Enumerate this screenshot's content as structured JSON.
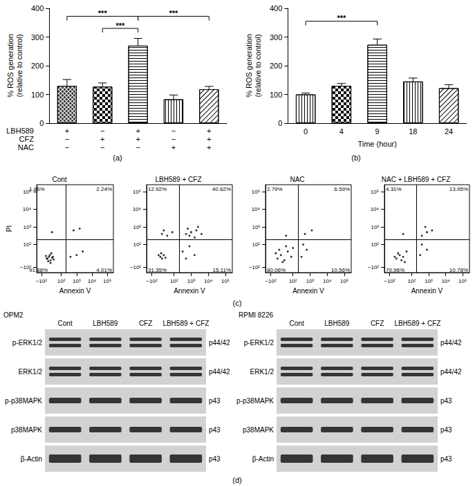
{
  "chart_data": [
    {
      "type": "bar",
      "ylabel": "% ROS generation\n(relative to control)",
      "color": "#000000",
      "ylim": [
        0,
        400
      ],
      "yticks": [
        0,
        100,
        200,
        300,
        400
      ],
      "treatment_rows": [
        {
          "name": "LBH589",
          "signs": [
            "+",
            "−",
            "+",
            "−",
            "+"
          ]
        },
        {
          "name": "CFZ",
          "signs": [
            "−",
            "+",
            "+",
            "−",
            "+"
          ]
        },
        {
          "name": "NAC",
          "signs": [
            "−",
            "−",
            "−",
            "+",
            "+"
          ]
        }
      ],
      "values": [
        130,
        127,
        270,
        83,
        118
      ],
      "errors": [
        22,
        13,
        25,
        15,
        10
      ],
      "significance": [
        {
          "from": 0,
          "to": 2,
          "y": 372,
          "label": "***"
        },
        {
          "from": 1,
          "to": 2,
          "y": 330,
          "label": "***"
        },
        {
          "from": 2,
          "to": 4,
          "y": 372,
          "label": "***"
        }
      ]
    },
    {
      "type": "bar",
      "ylabel": "% ROS generation\n(relative to control)",
      "xlabel": "Time (hour)",
      "color": "#000000",
      "categories": [
        "0",
        "4",
        "9",
        "18",
        "24"
      ],
      "ylim": [
        0,
        400
      ],
      "yticks": [
        0,
        100,
        200,
        300,
        400
      ],
      "values": [
        100,
        130,
        273,
        145,
        122
      ],
      "errors": [
        5,
        8,
        20,
        12,
        12
      ],
      "significance": [
        {
          "from": 0,
          "to": 2,
          "y": 355,
          "label": "***"
        }
      ]
    },
    {
      "type": "scatter",
      "title": "Cont",
      "xlabel": "Annexin V",
      "ylabel": "PI",
      "color": "#000000",
      "xlim": [
        0,
        5
      ],
      "ylim": [
        0,
        5
      ],
      "xticks": [
        {
          "value": 0.3,
          "label": "−10²"
        },
        {
          "value": 1.6,
          "label": "10²"
        },
        {
          "value": 2.6,
          "label": "10³"
        },
        {
          "value": 3.6,
          "label": "10⁴"
        },
        {
          "value": 4.6,
          "label": "10⁵"
        }
      ],
      "yticks": [
        {
          "value": 0.3,
          "label": "−10²"
        },
        {
          "value": 1.6,
          "label": "10²"
        },
        {
          "value": 2.6,
          "label": "10³"
        },
        {
          "value": 3.6,
          "label": "10⁴"
        },
        {
          "value": 4.6,
          "label": "10⁵"
        }
      ],
      "gate": [
        1.9,
        1.9
      ],
      "quadrant_labels": {
        "upper_left": "1.86%",
        "upper_right": "2.24%",
        "lower_left": "91.88%",
        "lower_right": "4.01%"
      },
      "x": [
        0.7,
        0.8,
        0.9,
        1.0,
        0.6,
        0.85,
        1.1,
        0.75,
        0.95,
        1.05,
        0.65,
        2.2,
        2.6,
        3.0,
        2.4,
        1.0,
        2.8,
        0.9
      ],
      "y": [
        0.8,
        0.9,
        0.7,
        0.85,
        0.95,
        1.0,
        0.75,
        0.65,
        1.1,
        0.9,
        0.8,
        0.9,
        1.0,
        1.2,
        2.4,
        2.3,
        2.5,
        0.55
      ]
    },
    {
      "type": "scatter",
      "title": "LBH589 + CFZ",
      "xlabel": "Annexin V",
      "color": "#000000",
      "xlim": [
        0,
        5
      ],
      "ylim": [
        0,
        5
      ],
      "xticks": [
        {
          "value": 0.3,
          "label": "−10²"
        },
        {
          "value": 1.6,
          "label": "10²"
        },
        {
          "value": 2.6,
          "label": "10³"
        },
        {
          "value": 3.6,
          "label": "10⁴"
        },
        {
          "value": 4.6,
          "label": "10⁵"
        }
      ],
      "yticks": [
        {
          "value": 0.3,
          "label": "−10²"
        },
        {
          "value": 1.6,
          "label": "10²"
        },
        {
          "value": 2.6,
          "label": "10³"
        },
        {
          "value": 3.6,
          "label": "10⁴"
        },
        {
          "value": 4.6,
          "label": "10⁵"
        }
      ],
      "gate": [
        1.9,
        1.9
      ],
      "quadrant_labels": {
        "upper_left": "12.92%",
        "upper_right": "40.62%",
        "lower_left": "31.35%",
        "lower_right": "15.11%"
      },
      "x": [
        0.8,
        0.9,
        1.0,
        0.7,
        1.1,
        0.85,
        0.9,
        1.2,
        1.5,
        1.0,
        2.3,
        2.6,
        2.9,
        2.5,
        3.2,
        2.8,
        2.4,
        3.0,
        2.1,
        2.5,
        2.8,
        2.3
      ],
      "y": [
        0.9,
        0.8,
        1.0,
        1.0,
        0.85,
        1.1,
        2.2,
        2.1,
        2.3,
        2.4,
        2.2,
        2.3,
        2.4,
        2.1,
        2.2,
        2.0,
        2.5,
        2.6,
        1.2,
        1.5,
        1.0,
        0.8
      ]
    },
    {
      "type": "scatter",
      "title": "NAC",
      "xlabel": "Annexin V",
      "color": "#000000",
      "xlim": [
        0,
        5
      ],
      "ylim": [
        0,
        5
      ],
      "xticks": [
        {
          "value": 0.3,
          "label": "−10²"
        },
        {
          "value": 1.6,
          "label": "10²"
        },
        {
          "value": 2.6,
          "label": "10³"
        },
        {
          "value": 3.6,
          "label": "10⁴"
        },
        {
          "value": 4.6,
          "label": "10⁵"
        }
      ],
      "yticks": [
        {
          "value": 0.3,
          "label": "−10²"
        },
        {
          "value": 1.6,
          "label": "10²"
        },
        {
          "value": 2.6,
          "label": "10³"
        },
        {
          "value": 3.6,
          "label": "10⁴"
        },
        {
          "value": 4.6,
          "label": "10⁵"
        }
      ],
      "gate": [
        1.9,
        1.9
      ],
      "quadrant_labels": {
        "upper_left": "2.79%",
        "upper_right": "6.59%",
        "lower_left": "80.06%",
        "lower_right": "10.56%"
      },
      "x": [
        0.7,
        0.9,
        1.1,
        1.3,
        0.8,
        1.5,
        1.0,
        1.2,
        1.6,
        0.6,
        2.1,
        2.4,
        2.2,
        2.3,
        2.7,
        1.2
      ],
      "y": [
        0.8,
        1.0,
        0.7,
        1.2,
        1.3,
        0.9,
        0.6,
        1.5,
        1.4,
        1.1,
        0.9,
        1.3,
        1.6,
        2.2,
        2.4,
        2.1
      ]
    },
    {
      "type": "scatter",
      "title": "NAC + LBH589 + CFZ",
      "xlabel": "Annexin V",
      "color": "#000000",
      "xlim": [
        0,
        5
      ],
      "ylim": [
        0,
        5
      ],
      "xticks": [
        {
          "value": 0.3,
          "label": "−10²"
        },
        {
          "value": 1.6,
          "label": "10²"
        },
        {
          "value": 2.6,
          "label": "10³"
        },
        {
          "value": 3.6,
          "label": "10⁴"
        },
        {
          "value": 4.6,
          "label": "10⁵"
        }
      ],
      "yticks": [
        {
          "value": 0.3,
          "label": "−10²"
        },
        {
          "value": 1.6,
          "label": "10²"
        },
        {
          "value": 2.6,
          "label": "10³"
        },
        {
          "value": 3.6,
          "label": "10⁴"
        },
        {
          "value": 4.6,
          "label": "10⁵"
        }
      ],
      "gate": [
        1.9,
        1.9
      ],
      "quadrant_labels": {
        "upper_left": "4.31%",
        "upper_right": "13.95%",
        "lower_left": "70.96%",
        "lower_right": "10.78%"
      },
      "x": [
        0.7,
        0.9,
        1.0,
        0.8,
        1.1,
        1.3,
        0.6,
        1.2,
        2.1,
        2.5,
        2.2,
        2.2,
        2.5,
        2.8,
        2.4,
        1.1
      ],
      "y": [
        0.8,
        1.0,
        0.7,
        1.1,
        0.9,
        1.2,
        0.9,
        0.6,
        1.0,
        1.3,
        1.6,
        2.1,
        2.3,
        2.4,
        2.6,
        2.2
      ]
    }
  ],
  "panel_labels": [
    "(a)",
    "(b)",
    "(c)",
    "(d)"
  ],
  "blots": [
    {
      "cell_line": "OPM2",
      "lanes": [
        "Cont",
        "LBH589",
        "CFZ",
        "LBH589 + CFZ"
      ],
      "rows": [
        {
          "protein": "p-ERK1/2",
          "size": "p44/42",
          "bands": 2
        },
        {
          "protein": "ERK1/2",
          "size": "p44/42",
          "bands": 2
        },
        {
          "protein": "p-p38MAPK",
          "size": "p43",
          "bands": 1
        },
        {
          "protein": "p38MAPK",
          "size": "p43",
          "bands": 1
        },
        {
          "protein": "β-Actin",
          "size": "p43",
          "bands": 1
        }
      ]
    },
    {
      "cell_line": "RPMI 8226",
      "lanes": [
        "Cont",
        "LBH589",
        "CFZ",
        "LBH589 + CFZ"
      ],
      "rows": [
        {
          "protein": "p-ERK1/2",
          "size": "p44/42",
          "bands": 2
        },
        {
          "protein": "ERK1/2",
          "size": "p44/42",
          "bands": 2
        },
        {
          "protein": "p-p38MAPK",
          "size": "p43",
          "bands": 1
        },
        {
          "protein": "p38MAPK",
          "size": "p43",
          "bands": 1
        },
        {
          "protein": "β-Actin",
          "size": "p43",
          "bands": 1
        }
      ]
    }
  ]
}
